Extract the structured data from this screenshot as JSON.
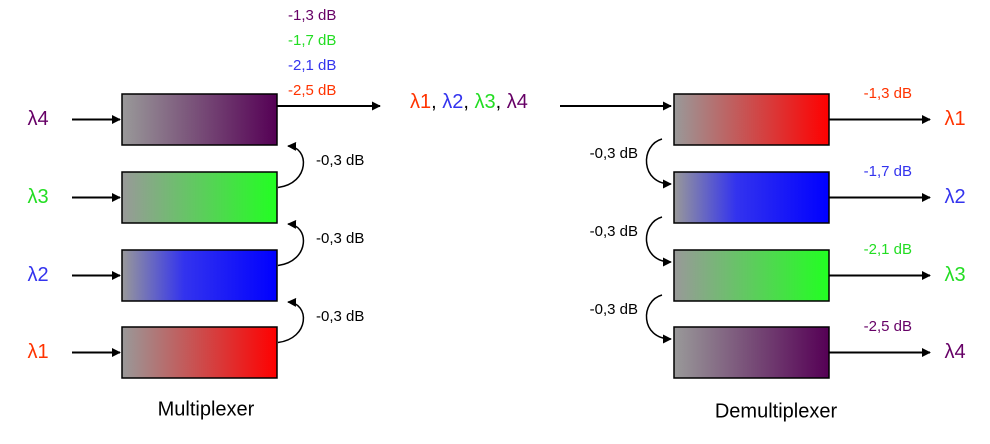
{
  "multiplexer": {
    "label": "Multiplexer",
    "inputs": [
      "λ4",
      "λ3",
      "λ2",
      "λ1"
    ],
    "coupling_losses": [
      "-0,3 dB",
      "-0,3 dB",
      "-0,3 dB"
    ],
    "output_losses": [
      "-1,3 dB",
      "-1,7 dB",
      "-2,1 dB",
      "-2,5 dB"
    ]
  },
  "combined_signal": {
    "wavelengths": [
      "λ1",
      "λ2",
      "λ3",
      "λ4"
    ],
    "separator": ","
  },
  "demultiplexer": {
    "label": "Demultiplexer",
    "outputs": [
      "λ1",
      "λ2",
      "λ3",
      "λ4"
    ],
    "coupling_losses": [
      "-0,3 dB",
      "-0,3 dB",
      "-0,3 dB"
    ],
    "output_losses": [
      "-1,3 dB",
      "-1,7 dB",
      "-2,1 dB",
      "-2,5 dB"
    ]
  }
}
